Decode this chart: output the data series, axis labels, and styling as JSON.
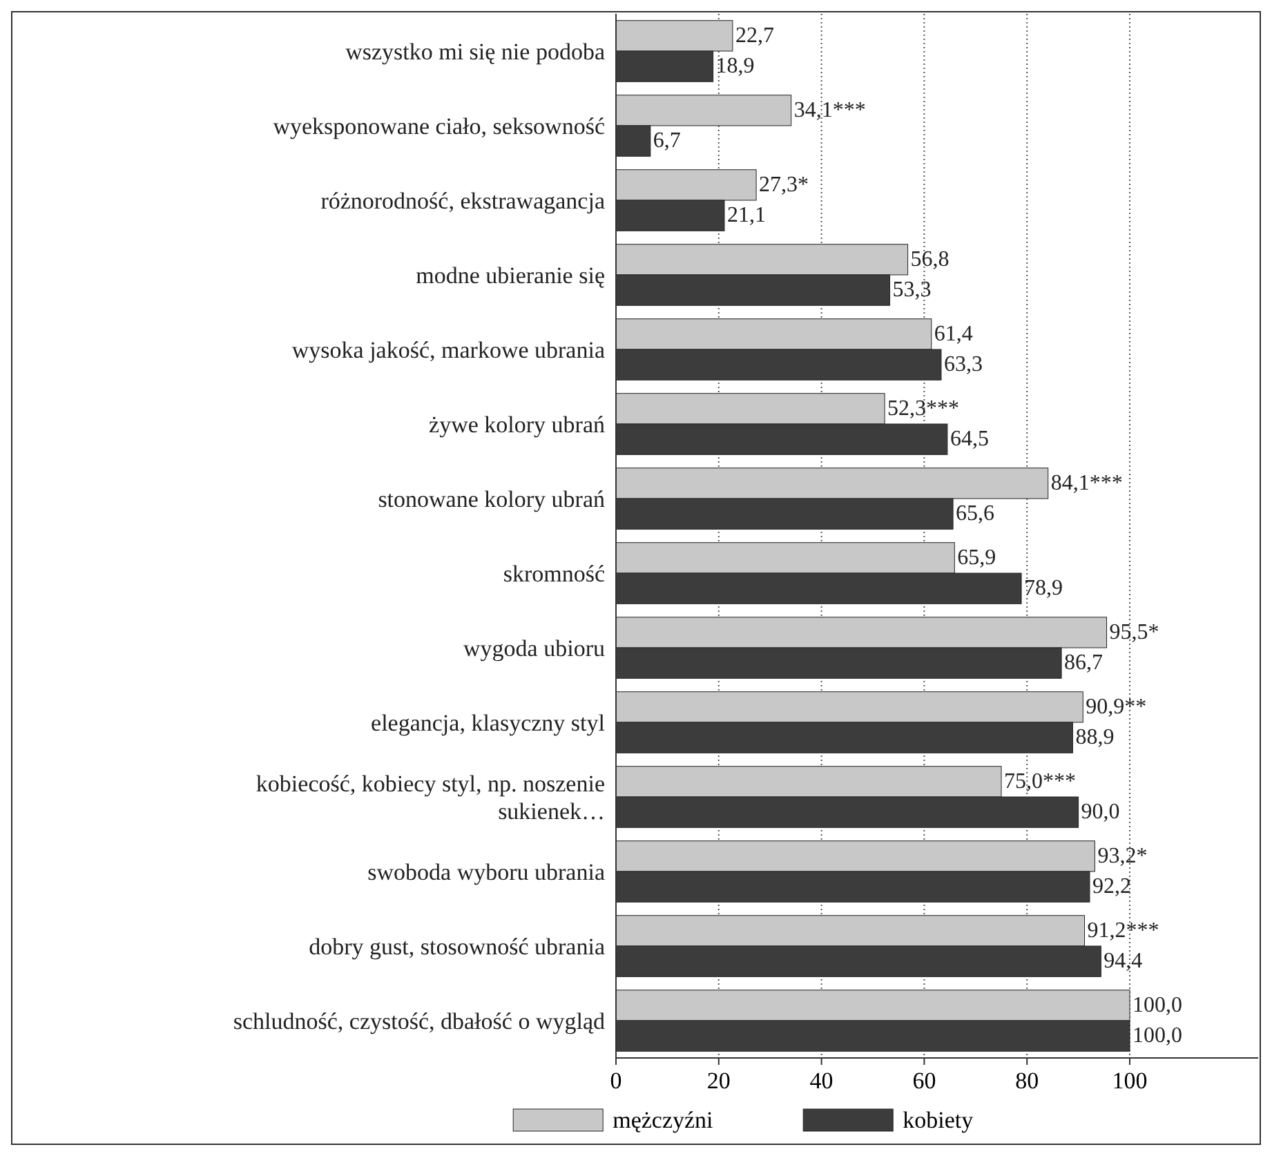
{
  "chart_data": {
    "type": "bar",
    "orientation": "horizontal",
    "categories": [
      "wszystko mi się nie podoba",
      "wyeksponowane ciało, seksowność",
      "różnorodność, ekstrawagancja",
      "modne ubieranie się",
      "wysoka jakość, markowe ubrania",
      "żywe kolory ubrań",
      "stonowane kolory ubrań",
      "skromność",
      "wygoda ubioru",
      "elegancja, klasyczny styl",
      "kobiecość, kobiecy styl, np. noszenie sukienek…",
      "swoboda wyboru ubrania",
      "dobry gust, stosowność ubrania",
      "schludność, czystość, dbałość o wygląd"
    ],
    "series": [
      {
        "name": "mężczyźni",
        "color": "#c8c8c8",
        "values": [
          22.7,
          34.1,
          27.3,
          56.8,
          61.4,
          52.3,
          84.1,
          65.9,
          95.5,
          90.9,
          75.0,
          93.2,
          91.2,
          100.0
        ],
        "value_labels": [
          "22,7",
          "34,1***",
          "27,3*",
          "56,8",
          "61,4",
          "52,3***",
          "84,1***",
          "65,9",
          "95,5*",
          "90,9**",
          "75,0***",
          "93,2*",
          "91,2***",
          "100,0"
        ]
      },
      {
        "name": "kobiety",
        "color": "#3c3c3c",
        "values": [
          18.9,
          6.7,
          21.1,
          53.3,
          63.3,
          64.5,
          65.6,
          78.9,
          86.7,
          88.9,
          90.0,
          92.2,
          94.4,
          100.0
        ],
        "value_labels": [
          "18,9",
          "6,7",
          "21,1",
          "53,3",
          "63,3",
          "64,5",
          "65,6",
          "78,9",
          "86,7",
          "88,9",
          "90,0",
          "92,2",
          "94,4",
          "100,0"
        ]
      }
    ],
    "xlim": [
      0,
      125
    ],
    "xticks": [
      0,
      20,
      40,
      60,
      80,
      100
    ],
    "grid": "x",
    "legend": "bottom"
  }
}
